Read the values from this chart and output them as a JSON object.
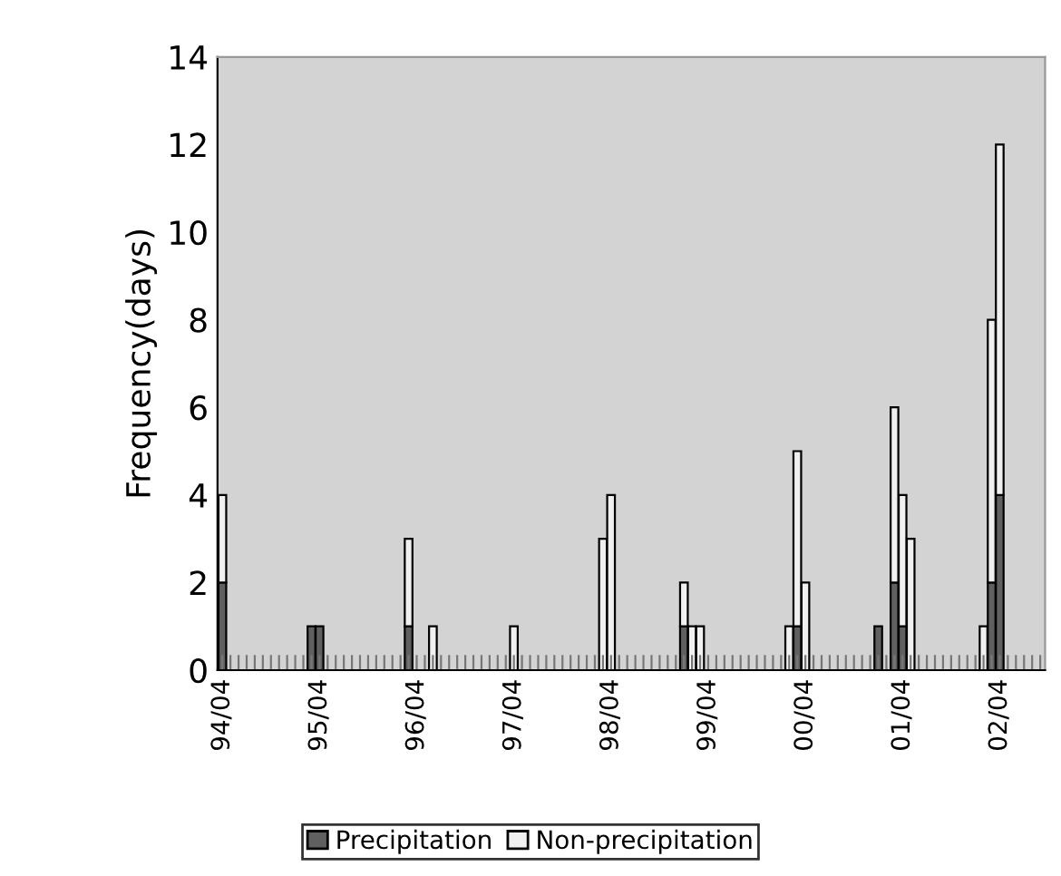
{
  "chart_data": {
    "type": "bar",
    "stacked": true,
    "ylabel": "Frequency(days)",
    "categories": [
      "94/04",
      null,
      null,
      null,
      null,
      null,
      null,
      null,
      null,
      null,
      null,
      null,
      "95/04",
      null,
      null,
      null,
      null,
      null,
      null,
      null,
      null,
      null,
      null,
      null,
      "96/04",
      null,
      null,
      null,
      null,
      null,
      null,
      null,
      null,
      null,
      null,
      null,
      "97/04",
      null,
      null,
      null,
      null,
      null,
      null,
      null,
      null,
      null,
      null,
      null,
      "98/04",
      null,
      null,
      null,
      null,
      null,
      null,
      null,
      null,
      null,
      null,
      null,
      "99/04",
      null,
      null,
      null,
      null,
      null,
      null,
      null,
      null,
      null,
      null,
      null,
      "00/04",
      null,
      null,
      null,
      null,
      null,
      null,
      null,
      null,
      null,
      null,
      null,
      "01/04",
      null,
      null,
      null,
      null,
      null,
      null,
      null,
      null,
      null,
      null,
      null,
      "02/04",
      null,
      null,
      null,
      null,
      null
    ],
    "series": [
      {
        "name": "Precipitation",
        "color": "#606060",
        "values": [
          2,
          null,
          null,
          null,
          null,
          null,
          null,
          null,
          null,
          null,
          null,
          1,
          1,
          null,
          null,
          null,
          null,
          null,
          null,
          null,
          null,
          null,
          null,
          1,
          null,
          null,
          null,
          null,
          null,
          null,
          null,
          null,
          null,
          null,
          null,
          null,
          null,
          null,
          null,
          null,
          null,
          null,
          null,
          null,
          null,
          null,
          null,
          null,
          null,
          null,
          null,
          null,
          null,
          null,
          null,
          null,
          null,
          1,
          null,
          null,
          null,
          null,
          null,
          null,
          null,
          null,
          null,
          null,
          null,
          null,
          null,
          1,
          null,
          null,
          null,
          null,
          null,
          null,
          null,
          null,
          null,
          1,
          null,
          2,
          1,
          null,
          null,
          null,
          null,
          null,
          null,
          null,
          null,
          null,
          null,
          2,
          4,
          null,
          null,
          null,
          null,
          null
        ]
      },
      {
        "name": "Non-precipitation",
        "color": "#f0f0f0",
        "values": [
          2,
          null,
          null,
          null,
          null,
          null,
          null,
          null,
          null,
          null,
          null,
          null,
          null,
          null,
          null,
          null,
          null,
          null,
          null,
          null,
          null,
          null,
          null,
          2,
          null,
          null,
          1,
          null,
          null,
          null,
          null,
          null,
          null,
          null,
          null,
          null,
          1,
          null,
          null,
          null,
          null,
          null,
          null,
          null,
          null,
          null,
          null,
          3,
          4,
          null,
          null,
          null,
          null,
          null,
          null,
          null,
          null,
          1,
          1,
          1,
          null,
          null,
          null,
          null,
          null,
          null,
          null,
          null,
          null,
          null,
          1,
          4,
          2,
          null,
          null,
          null,
          null,
          null,
          null,
          null,
          null,
          null,
          null,
          4,
          3,
          3,
          null,
          null,
          null,
          null,
          null,
          null,
          null,
          null,
          1,
          6,
          8,
          null,
          null,
          null,
          null,
          null
        ]
      }
    ],
    "ylim": [
      0,
      14
    ],
    "yticks": [
      0,
      2,
      4,
      6,
      8,
      10,
      12,
      14
    ],
    "grid": false,
    "legend": "bottom"
  }
}
